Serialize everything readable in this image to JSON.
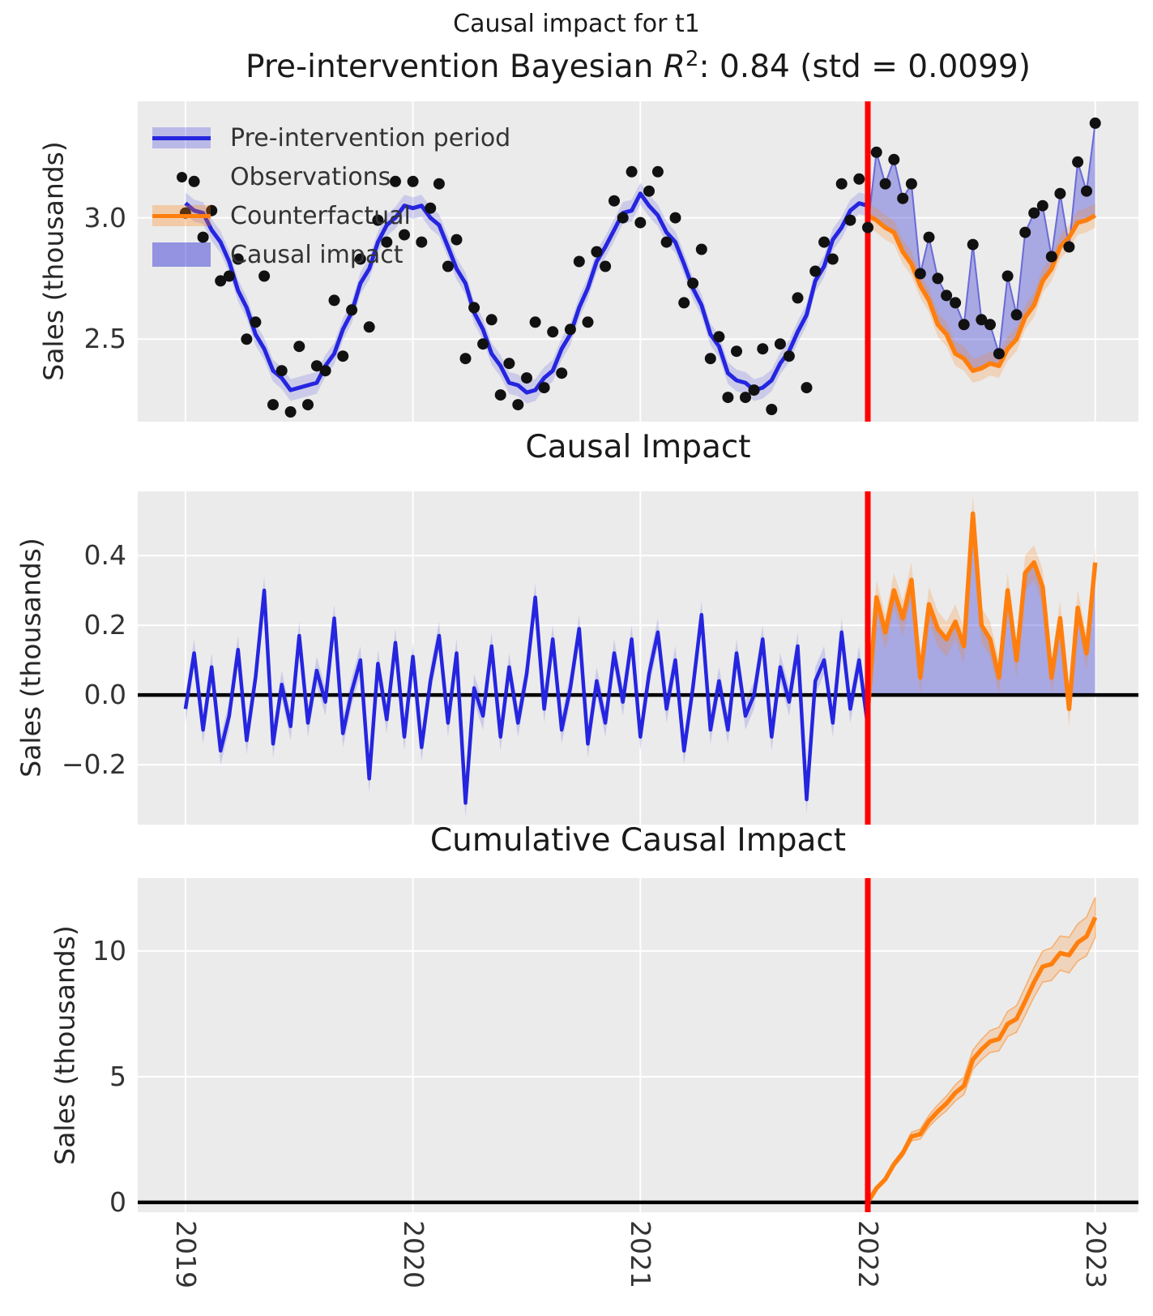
{
  "figure": {
    "suptitle": "Causal impact for t1"
  },
  "fit_title": {
    "prefix": "Pre-intervention Bayesian ",
    "math_r": "R",
    "math_sup": "2",
    "suffix": ": 0.84 (std = 0.0099)"
  },
  "colors": {
    "axes_bg": "#ebebeb",
    "grid": "#ffffff",
    "blue": "#2525e0",
    "blue_band": "rgba(37,37,224,0.16)",
    "blue_fill": "rgba(60,60,215,0.38)",
    "obs_edge": "#6a6ad8",
    "orange": "#ff7f0e",
    "orange_band": "rgba(255,127,14,0.22)",
    "orange_band_edge": "rgba(255,127,14,0.5)",
    "red": "#ff0000",
    "black": "#000000",
    "dot": "#111111"
  },
  "legend": {
    "items": [
      {
        "label": "Pre-intervention period",
        "swatch": "band-line-blue"
      },
      {
        "label": "Observations",
        "swatch": "dot"
      },
      {
        "label": "Counterfactual",
        "swatch": "band-line-orange"
      },
      {
        "label": "Causal impact",
        "swatch": "patch-blue"
      }
    ]
  },
  "xaxis": {
    "xlim": [
      2018.79,
      2023.19
    ],
    "ticks": [
      2019,
      2020,
      2021,
      2022,
      2023
    ],
    "tick_labels": [
      "2019",
      "2020",
      "2021",
      "2022",
      "2023"
    ]
  },
  "panels": [
    {
      "title": "",
      "ylabel": "Sales (thousands)",
      "ylim": [
        2.16,
        3.48
      ],
      "yticks": [
        2.5,
        3.0
      ],
      "ytick_labels": [
        "2.5",
        "3.0"
      ]
    },
    {
      "title": "Causal Impact",
      "ylabel": "Sales (thousands)",
      "ylim": [
        -0.372,
        0.584
      ],
      "yticks": [
        -0.2,
        0.0,
        0.2,
        0.4
      ],
      "ytick_labels": [
        "−0.2",
        "0.0",
        "0.2",
        "0.4"
      ]
    },
    {
      "title": "Cumulative Causal Impact",
      "ylabel": "Sales (thousands)",
      "ylim": [
        -0.39,
        12.9
      ],
      "yticks": [
        0,
        5,
        10
      ],
      "ytick_labels": [
        "0",
        "5",
        "10"
      ]
    }
  ],
  "chart_data": {
    "type": "line",
    "intervention_x": 2022,
    "pre_end_index": 78,
    "t": [
      2019.0,
      2019.038,
      2019.077,
      2019.115,
      2019.154,
      2019.192,
      2019.231,
      2019.269,
      2019.308,
      2019.346,
      2019.385,
      2019.423,
      2019.462,
      2019.5,
      2019.538,
      2019.577,
      2019.615,
      2019.654,
      2019.692,
      2019.731,
      2019.769,
      2019.808,
      2019.846,
      2019.885,
      2019.923,
      2019.962,
      2020.0,
      2020.038,
      2020.077,
      2020.115,
      2020.154,
      2020.192,
      2020.231,
      2020.269,
      2020.308,
      2020.346,
      2020.385,
      2020.423,
      2020.462,
      2020.5,
      2020.538,
      2020.577,
      2020.615,
      2020.654,
      2020.692,
      2020.731,
      2020.769,
      2020.808,
      2020.846,
      2020.885,
      2020.923,
      2020.962,
      2021.0,
      2021.038,
      2021.077,
      2021.115,
      2021.154,
      2021.192,
      2021.231,
      2021.269,
      2021.308,
      2021.346,
      2021.385,
      2021.423,
      2021.462,
      2021.5,
      2021.538,
      2021.577,
      2021.615,
      2021.654,
      2021.692,
      2021.731,
      2021.769,
      2021.808,
      2021.846,
      2021.885,
      2021.923,
      2021.962,
      2022.0,
      2022.038,
      2022.077,
      2022.115,
      2022.154,
      2022.192,
      2022.231,
      2022.269,
      2022.308,
      2022.346,
      2022.385,
      2022.423,
      2022.462,
      2022.5,
      2022.538,
      2022.577,
      2022.615,
      2022.654,
      2022.692,
      2022.731,
      2022.769,
      2022.808,
      2022.846,
      2022.885,
      2022.923,
      2022.962,
      2023.0
    ],
    "observations": [
      3.02,
      3.15,
      2.92,
      3.03,
      2.74,
      2.76,
      2.83,
      2.5,
      2.57,
      2.76,
      2.23,
      2.37,
      2.2,
      2.47,
      2.23,
      2.39,
      2.37,
      2.66,
      2.43,
      2.62,
      2.83,
      2.55,
      2.99,
      2.9,
      3.15,
      2.93,
      3.15,
      2.9,
      3.04,
      3.14,
      2.8,
      2.91,
      2.42,
      2.63,
      2.48,
      2.58,
      2.27,
      2.4,
      2.23,
      2.34,
      2.57,
      2.3,
      2.53,
      2.36,
      2.54,
      2.82,
      2.57,
      2.86,
      2.8,
      3.07,
      3.0,
      3.19,
      2.98,
      3.11,
      3.19,
      2.9,
      3.0,
      2.65,
      2.73,
      2.87,
      2.42,
      2.51,
      2.26,
      2.45,
      2.26,
      2.29,
      2.46,
      2.21,
      2.48,
      2.43,
      2.67,
      2.3,
      2.78,
      2.9,
      2.83,
      3.14,
      2.99,
      3.16,
      2.96,
      3.27,
      3.14,
      3.24,
      3.08,
      3.14,
      2.77,
      2.92,
      2.75,
      2.68,
      2.65,
      2.56,
      2.89,
      2.58,
      2.56,
      2.44,
      2.76,
      2.6,
      2.94,
      3.02,
      3.05,
      2.84,
      3.1,
      2.88,
      3.23,
      3.11,
      3.39
    ],
    "pre_mean": [
      3.06,
      3.03,
      3.02,
      2.95,
      2.9,
      2.82,
      2.7,
      2.63,
      2.52,
      2.46,
      2.37,
      2.34,
      2.29,
      2.3,
      2.31,
      2.32,
      2.39,
      2.44,
      2.54,
      2.61,
      2.73,
      2.79,
      2.9,
      2.97,
      3.0,
      3.05,
      3.04,
      3.05,
      3.0,
      2.97,
      2.88,
      2.79,
      2.73,
      2.61,
      2.54,
      2.44,
      2.39,
      2.32,
      2.31,
      2.28,
      2.29,
      2.34,
      2.37,
      2.46,
      2.52,
      2.63,
      2.71,
      2.82,
      2.88,
      2.95,
      3.02,
      3.03,
      3.1,
      3.05,
      3.01,
      2.94,
      2.9,
      2.81,
      2.71,
      2.64,
      2.52,
      2.47,
      2.36,
      2.33,
      2.32,
      2.29,
      2.3,
      2.33,
      2.4,
      2.45,
      2.53,
      2.6,
      2.74,
      2.8,
      2.91,
      2.96,
      3.03,
      3.06,
      3.05
    ],
    "pre_band_halfwidth": 0.045,
    "counterfactual_mean": [
      3.01,
      2.99,
      2.96,
      2.94,
      2.86,
      2.81,
      2.72,
      2.66,
      2.56,
      2.52,
      2.44,
      2.42,
      2.37,
      2.38,
      2.4,
      2.39,
      2.46,
      2.5,
      2.59,
      2.64,
      2.74,
      2.79,
      2.88,
      2.92,
      2.98,
      2.99,
      3.01
    ],
    "counterfactual_band_halfwidth": 0.05,
    "impact_pre": [
      -0.04,
      0.12,
      -0.1,
      0.08,
      -0.16,
      -0.06,
      0.13,
      -0.13,
      0.05,
      0.3,
      -0.14,
      0.03,
      -0.09,
      0.17,
      -0.08,
      0.07,
      -0.02,
      0.22,
      -0.11,
      0.01,
      0.1,
      -0.24,
      0.09,
      -0.07,
      0.15,
      -0.12,
      0.11,
      -0.15,
      0.04,
      0.17,
      -0.08,
      0.12,
      -0.31,
      0.02,
      -0.06,
      0.14,
      -0.12,
      0.08,
      -0.08,
      0.06,
      0.28,
      -0.04,
      0.16,
      -0.1,
      0.02,
      0.19,
      -0.14,
      0.04,
      -0.08,
      0.12,
      -0.02,
      0.16,
      -0.12,
      0.06,
      0.18,
      -0.04,
      0.1,
      -0.16,
      0.02,
      0.23,
      -0.1,
      0.04,
      -0.1,
      0.12,
      -0.06,
      0.0,
      0.16,
      -0.12,
      0.08,
      -0.02,
      0.14,
      -0.3,
      0.04,
      0.1,
      -0.08,
      0.18,
      -0.04,
      0.1,
      -0.09
    ],
    "impact_pre_band_halfwidth": 0.04,
    "impact_post": [
      -0.05,
      0.28,
      0.18,
      0.3,
      0.22,
      0.33,
      0.05,
      0.26,
      0.19,
      0.16,
      0.21,
      0.14,
      0.52,
      0.2,
      0.16,
      0.05,
      0.3,
      0.1,
      0.35,
      0.38,
      0.31,
      0.05,
      0.22,
      -0.04,
      0.25,
      0.12,
      0.38
    ],
    "impact_post_band_halfwidth": 0.05,
    "cumulative_impact": [
      0,
      0.56,
      0.92,
      1.52,
      1.96,
      2.62,
      2.72,
      3.24,
      3.62,
      3.94,
      4.36,
      4.64,
      5.68,
      6.08,
      6.4,
      6.5,
      7.1,
      7.3,
      8.0,
      8.76,
      9.38,
      9.48,
      9.92,
      9.84,
      10.34,
      10.58,
      11.34
    ],
    "cumulative_band_halfwidth": [
      0,
      0.05,
      0.08,
      0.11,
      0.14,
      0.17,
      0.2,
      0.23,
      0.26,
      0.29,
      0.32,
      0.35,
      0.38,
      0.41,
      0.44,
      0.47,
      0.5,
      0.53,
      0.56,
      0.59,
      0.62,
      0.65,
      0.68,
      0.71,
      0.74,
      0.77,
      0.8
    ]
  }
}
